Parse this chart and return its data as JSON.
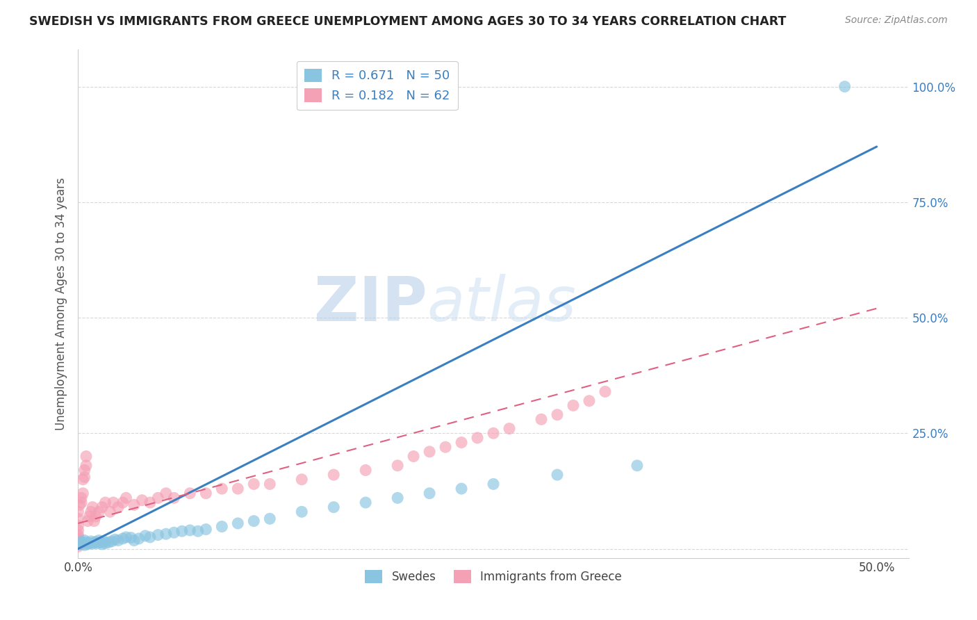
{
  "title": "SWEDISH VS IMMIGRANTS FROM GREECE UNEMPLOYMENT AMONG AGES 30 TO 34 YEARS CORRELATION CHART",
  "source": "Source: ZipAtlas.com",
  "ylabel": "Unemployment Among Ages 30 to 34 years",
  "xlim": [
    0.0,
    0.52
  ],
  "ylim": [
    -0.02,
    1.08
  ],
  "xticks": [
    0.0,
    0.5
  ],
  "yticks": [
    0.0,
    0.25,
    0.5,
    0.75,
    1.0
  ],
  "xticklabels": [
    "0.0%",
    "50.0%"
  ],
  "yticklabels": [
    "",
    "25.0%",
    "50.0%",
    "75.0%",
    "100.0%"
  ],
  "swedes_color": "#89c4e1",
  "immigrants_color": "#f4a0b5",
  "swedes_line_color": "#3a7fc1",
  "immigrants_line_color": "#e06080",
  "R_swedes": 0.671,
  "N_swedes": 50,
  "R_immigrants": 0.182,
  "N_immigrants": 62,
  "background_color": "#ffffff",
  "grid_color": "#d8d8d8",
  "legend_label_swedes": "Swedes",
  "legend_label_immigrants": "Immigrants from Greece",
  "swedes_x": [
    0.001,
    0.002,
    0.003,
    0.004,
    0.004,
    0.005,
    0.006,
    0.007,
    0.008,
    0.009,
    0.01,
    0.011,
    0.012,
    0.013,
    0.014,
    0.015,
    0.016,
    0.017,
    0.019,
    0.021,
    0.023,
    0.025,
    0.028,
    0.03,
    0.033,
    0.035,
    0.038,
    0.042,
    0.045,
    0.05,
    0.055,
    0.06,
    0.065,
    0.07,
    0.075,
    0.08,
    0.09,
    0.1,
    0.11,
    0.12,
    0.14,
    0.16,
    0.18,
    0.2,
    0.22,
    0.24,
    0.26,
    0.3,
    0.35,
    0.48
  ],
  "swedes_y": [
    0.01,
    0.015,
    0.012,
    0.008,
    0.018,
    0.014,
    0.01,
    0.012,
    0.016,
    0.011,
    0.013,
    0.015,
    0.012,
    0.018,
    0.014,
    0.01,
    0.016,
    0.012,
    0.014,
    0.016,
    0.02,
    0.018,
    0.022,
    0.025,
    0.024,
    0.018,
    0.022,
    0.028,
    0.025,
    0.03,
    0.032,
    0.035,
    0.038,
    0.04,
    0.038,
    0.042,
    0.048,
    0.055,
    0.06,
    0.065,
    0.08,
    0.09,
    0.1,
    0.11,
    0.12,
    0.13,
    0.14,
    0.16,
    0.18,
    1.0
  ],
  "immigrants_x": [
    0.0,
    0.0,
    0.0,
    0.0,
    0.0,
    0.0,
    0.0,
    0.0,
    0.0,
    0.0,
    0.001,
    0.001,
    0.002,
    0.002,
    0.003,
    0.003,
    0.004,
    0.004,
    0.005,
    0.005,
    0.006,
    0.007,
    0.008,
    0.009,
    0.01,
    0.011,
    0.013,
    0.015,
    0.017,
    0.02,
    0.022,
    0.025,
    0.028,
    0.03,
    0.035,
    0.04,
    0.045,
    0.05,
    0.055,
    0.06,
    0.07,
    0.08,
    0.09,
    0.1,
    0.11,
    0.12,
    0.14,
    0.16,
    0.18,
    0.2,
    0.21,
    0.22,
    0.23,
    0.24,
    0.25,
    0.26,
    0.27,
    0.29,
    0.3,
    0.31,
    0.32,
    0.33
  ],
  "immigrants_y": [
    0.005,
    0.01,
    0.015,
    0.02,
    0.025,
    0.03,
    0.04,
    0.05,
    0.065,
    0.08,
    0.01,
    0.095,
    0.1,
    0.11,
    0.12,
    0.15,
    0.155,
    0.17,
    0.18,
    0.2,
    0.06,
    0.07,
    0.08,
    0.09,
    0.06,
    0.07,
    0.08,
    0.09,
    0.1,
    0.08,
    0.1,
    0.09,
    0.1,
    0.11,
    0.095,
    0.105,
    0.1,
    0.11,
    0.12,
    0.11,
    0.12,
    0.12,
    0.13,
    0.13,
    0.14,
    0.14,
    0.15,
    0.16,
    0.17,
    0.18,
    0.2,
    0.21,
    0.22,
    0.23,
    0.24,
    0.25,
    0.26,
    0.28,
    0.29,
    0.31,
    0.32,
    0.34
  ],
  "blue_line_x": [
    0.0,
    0.5
  ],
  "blue_line_y": [
    0.0,
    0.87
  ],
  "pink_line_x": [
    0.0,
    0.5
  ],
  "pink_line_y": [
    0.055,
    0.52
  ]
}
